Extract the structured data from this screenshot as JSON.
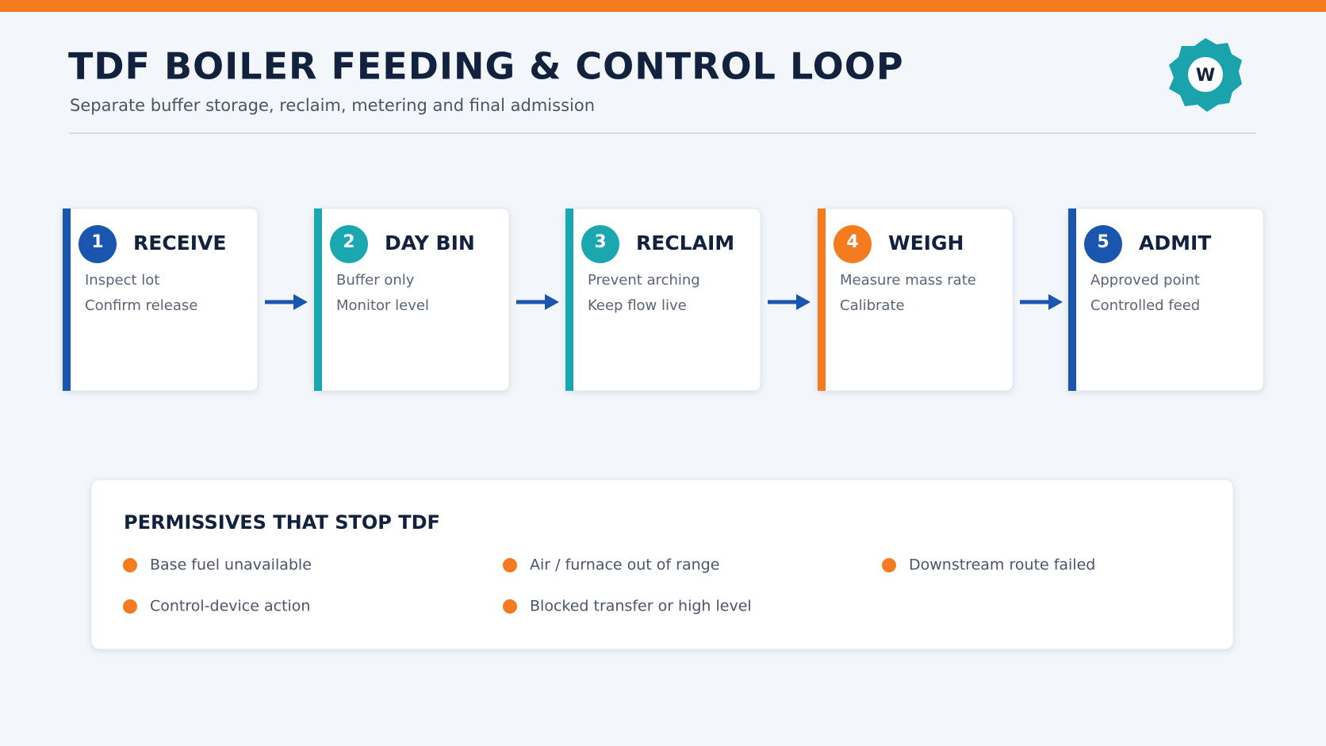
{
  "header": {
    "title": "TDF BOILER FEEDING & CONTROL LOOP",
    "subtitle": "Separate buffer storage, reclaim, metering and final admission"
  },
  "steps": [
    {
      "number": "1",
      "title": "RECEIVE",
      "lines": [
        "Inspect lot",
        "Confirm release"
      ]
    },
    {
      "number": "2",
      "title": "DAY BIN",
      "lines": [
        "Buffer only",
        "Monitor level"
      ]
    },
    {
      "number": "3",
      "title": "RECLAIM",
      "lines": [
        "Prevent arching",
        "Keep flow live"
      ]
    },
    {
      "number": "4",
      "title": "WEIGH",
      "lines": [
        "Measure mass rate",
        "Calibrate"
      ]
    },
    {
      "number": "5",
      "title": "ADMIT",
      "lines": [
        "Approved point",
        "Controlled feed"
      ]
    }
  ],
  "permissives": {
    "title": "PERMISSIVES THAT STOP TDF",
    "items": [
      "Base fuel unavailable",
      "Air / furnace out of range",
      "Downstream route failed",
      "Control-device action",
      "Blocked transfer or high level"
    ]
  }
}
